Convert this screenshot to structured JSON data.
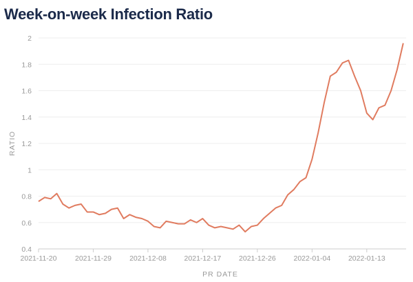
{
  "chart_data": {
    "type": "line",
    "title": "Week-on-week Infection Ratio",
    "xlabel": "PR DATE",
    "ylabel": "RATIO",
    "ylim": [
      0.4,
      2
    ],
    "yticks": [
      "0.4",
      "0.6",
      "0.8",
      "1",
      "1.2",
      "1.4",
      "1.6",
      "1.8",
      "2"
    ],
    "xticks": [
      "2021-11-20",
      "2021-11-29",
      "2021-12-08",
      "2021-12-17",
      "2021-12-26",
      "2022-01-04",
      "2022-01-13"
    ],
    "x_start": "2021-11-20",
    "x_end": "2022-01-19",
    "grid": "horizontal",
    "color": "#e07b5f",
    "series": [
      {
        "values": [
          0.76,
          0.79,
          0.78,
          0.82,
          0.74,
          0.71,
          0.73,
          0.74,
          0.68,
          0.68,
          0.66,
          0.67,
          0.7,
          0.71,
          0.63,
          0.66,
          0.64,
          0.63,
          0.61,
          0.57,
          0.56,
          0.61,
          0.6,
          0.59,
          0.59,
          0.62,
          0.6,
          0.63,
          0.58,
          0.56,
          0.57,
          0.56,
          0.55,
          0.58,
          0.53,
          0.57,
          0.58,
          0.63,
          0.67,
          0.71,
          0.73,
          0.81,
          0.85,
          0.91,
          0.94,
          1.08,
          1.28,
          1.51,
          1.71,
          1.74,
          1.81,
          1.83,
          1.71,
          1.6,
          1.43,
          1.38,
          1.47,
          1.49,
          1.6,
          1.76,
          1.96
        ]
      }
    ]
  }
}
